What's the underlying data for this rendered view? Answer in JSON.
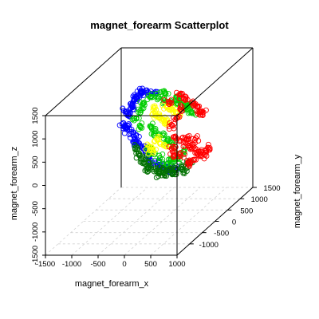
{
  "chart_data": {
    "type": "scatter",
    "title": "magnet_forearm Scatterplot",
    "xlabel": "magnet_forearm_x",
    "ylabel": "magnet_forearm_y",
    "zlabel": "magnet_forearm_z",
    "xlim": [
      -1500,
      1000
    ],
    "ylim": [
      -1500,
      1500
    ],
    "zlim": [
      -1500,
      1500
    ],
    "x_ticks": [
      "-1500",
      "-1000",
      "-500",
      "0",
      "500",
      "1000"
    ],
    "x_tick_values": [
      -1500,
      -1000,
      -500,
      0,
      500,
      1000
    ],
    "y_ticks": [
      "-1000",
      "-500",
      "0",
      "500",
      "1000",
      "1500"
    ],
    "y_tick_values": [
      -1000,
      -500,
      0,
      500,
      1000,
      1500
    ],
    "z_ticks": [
      "-1500",
      "-1000",
      "-500",
      "0",
      "500",
      "1000",
      "1500"
    ],
    "z_tick_values": [
      -1500,
      -1000,
      -500,
      0,
      500,
      1000,
      1500
    ],
    "grid": true,
    "colors": {
      "blue": "#0000ff",
      "green": "#00cd00",
      "darkgreen": "#007000",
      "yellow": "#ffff00",
      "red": "#ff0000"
    },
    "series": [
      {
        "color": "blue",
        "values": [
          [
            -300,
            -400,
            1350
          ],
          [
            -250,
            -300,
            1420
          ],
          [
            -350,
            -450,
            1250
          ],
          [
            -400,
            -350,
            1120
          ],
          [
            -450,
            -400,
            980
          ],
          [
            -500,
            -500,
            850
          ],
          [
            -480,
            -450,
            700
          ],
          [
            -430,
            -350,
            560
          ],
          [
            -380,
            -300,
            420
          ],
          [
            -330,
            -250,
            300
          ],
          [
            -280,
            -200,
            180
          ],
          [
            -240,
            -150,
            80
          ],
          [
            -200,
            -100,
            -40
          ],
          [
            -150,
            -100,
            -150
          ],
          [
            -80,
            0,
            -200
          ],
          [
            -30,
            -50,
            -280
          ],
          [
            50,
            0,
            -330
          ],
          [
            120,
            -30,
            -360
          ],
          [
            200,
            -50,
            -380
          ],
          [
            280,
            -80,
            -360
          ],
          [
            -200,
            -500,
            1450
          ],
          [
            -100,
            -400,
            1460
          ],
          [
            0,
            -300,
            1420
          ],
          [
            -300,
            -200,
            1380
          ],
          [
            -400,
            -250,
            1280
          ],
          [
            -520,
            -350,
            1020
          ],
          [
            -460,
            -480,
            760
          ],
          [
            -360,
            -280,
            350
          ]
        ]
      },
      {
        "color": "green",
        "values": [
          [
            -100,
            -250,
            1300
          ],
          [
            0,
            -150,
            1250
          ],
          [
            100,
            -100,
            1150
          ],
          [
            200,
            -50,
            1080
          ],
          [
            300,
            0,
            1000
          ],
          [
            400,
            50,
            900
          ],
          [
            500,
            100,
            800
          ],
          [
            450,
            50,
            960
          ],
          [
            350,
            -50,
            1120
          ],
          [
            -200,
            -300,
            1200
          ],
          [
            -300,
            -250,
            1000
          ],
          [
            -350,
            -300,
            850
          ],
          [
            -150,
            -150,
            600
          ],
          [
            -100,
            -100,
            450
          ],
          [
            0,
            0,
            350
          ],
          [
            100,
            -50,
            250
          ],
          [
            200,
            0,
            150
          ],
          [
            350,
            100,
            -50
          ],
          [
            300,
            0,
            -150
          ],
          [
            200,
            -50,
            -200
          ],
          [
            -150,
            -200,
            180
          ],
          [
            -100,
            -200,
            50
          ],
          [
            0,
            -100,
            -100
          ],
          [
            100,
            -50,
            -250
          ],
          [
            250,
            50,
            1150
          ],
          [
            150,
            -200,
            1350
          ],
          [
            450,
            150,
            950
          ],
          [
            -250,
            -350,
            700
          ]
        ]
      },
      {
        "color": "darkgreen",
        "values": [
          [
            -250,
            -150,
            -150
          ],
          [
            -200,
            -100,
            -250
          ],
          [
            -100,
            -50,
            -350
          ],
          [
            0,
            0,
            -380
          ],
          [
            100,
            50,
            -420
          ],
          [
            200,
            100,
            -450
          ],
          [
            300,
            150,
            -400
          ],
          [
            400,
            200,
            -350
          ],
          [
            -300,
            -200,
            -50
          ],
          [
            -350,
            -200,
            50
          ],
          [
            -400,
            -250,
            200
          ],
          [
            -200,
            -150,
            -350
          ],
          [
            50,
            0,
            -480
          ],
          [
            150,
            80,
            -500
          ],
          [
            350,
            150,
            -480
          ],
          [
            -50,
            -50,
            -450
          ]
        ]
      },
      {
        "color": "yellow",
        "values": [
          [
            -50,
            -150,
            850
          ],
          [
            0,
            -100,
            780
          ],
          [
            50,
            -50,
            700
          ],
          [
            100,
            0,
            620
          ],
          [
            150,
            50,
            900
          ],
          [
            -80,
            -120,
            1000
          ],
          [
            -150,
            -200,
            200
          ],
          [
            -100,
            -150,
            100
          ],
          [
            -50,
            -100,
            300
          ],
          [
            50,
            -50,
            150
          ],
          [
            250,
            50,
            820
          ],
          [
            100,
            -20,
            950
          ]
        ]
      },
      {
        "color": "red",
        "values": [
          [
            300,
            50,
            1200
          ],
          [
            400,
            100,
            1100
          ],
          [
            500,
            200,
            950
          ],
          [
            550,
            250,
            850
          ],
          [
            600,
            300,
            700
          ],
          [
            300,
            100,
            850
          ],
          [
            250,
            50,
            700
          ],
          [
            200,
            0,
            550
          ],
          [
            300,
            -50,
            300
          ],
          [
            400,
            0,
            200
          ],
          [
            500,
            50,
            100
          ],
          [
            550,
            100,
            0
          ],
          [
            600,
            150,
            -100
          ],
          [
            650,
            200,
            -200
          ],
          [
            700,
            250,
            -150
          ],
          [
            500,
            100,
            -250
          ],
          [
            450,
            100,
            -300
          ],
          [
            350,
            0,
            -100
          ],
          [
            250,
            -50,
            -50
          ],
          [
            200,
            0,
            100
          ],
          [
            750,
            300,
            -100
          ],
          [
            550,
            150,
            180
          ],
          [
            450,
            50,
            250
          ],
          [
            150,
            -50,
            1100
          ],
          [
            500,
            500,
            600
          ]
        ]
      }
    ]
  }
}
